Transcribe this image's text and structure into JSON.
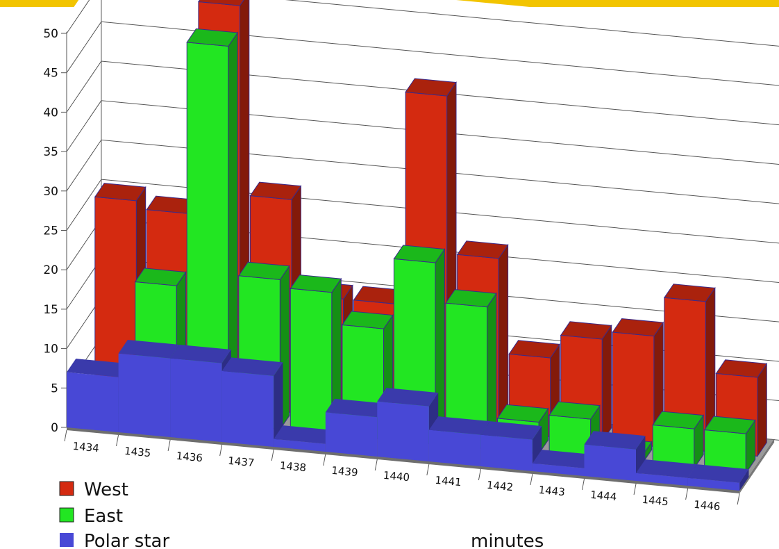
{
  "chart_data": {
    "type": "bar",
    "title": "",
    "xlabel": "minutes",
    "ylabel": "",
    "categories": [
      "1434",
      "1435",
      "1436",
      "1437",
      "1438",
      "1439",
      "1440",
      "1441",
      "1442",
      "1443",
      "1444",
      "1445",
      "1446"
    ],
    "series": [
      {
        "name": "West",
        "color": "#d42a10",
        "values": [
          25,
          24,
          51,
          27,
          15,
          15,
          42,
          22,
          10,
          13,
          14,
          19,
          10
        ]
      },
      {
        "name": "East",
        "color": "#22e622",
        "values": [
          1,
          17,
          48,
          19,
          18,
          14,
          23,
          18,
          4,
          5,
          1,
          5,
          5
        ]
      },
      {
        "name": "Polar star",
        "color": "#4848d6",
        "values": [
          7,
          10,
          10,
          9,
          1,
          5,
          7,
          4,
          4,
          1,
          4,
          1,
          1
        ]
      }
    ],
    "yticks": [
      0,
      5,
      10,
      15,
      20,
      25,
      30,
      35,
      40,
      45,
      50
    ],
    "ylim": [
      0,
      50
    ],
    "grid": true,
    "legend": "bottom-left"
  }
}
